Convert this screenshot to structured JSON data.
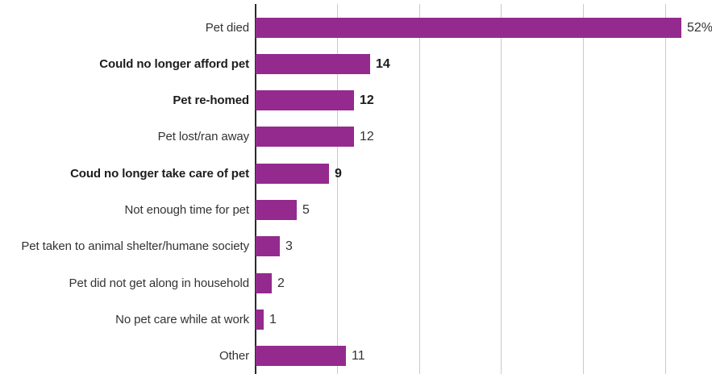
{
  "chart_data": {
    "type": "bar",
    "orientation": "horizontal",
    "title": "",
    "xlabel": "",
    "ylabel": "",
    "categories": [
      "Pet died",
      "Could no longer afford pet",
      "Pet re-homed",
      "Pet lost/ran away",
      "Coud no longer take care of pet",
      "Not enough time for pet",
      "Pet taken to animal shelter/humane society",
      "Pet did not get along in household",
      "No pet care while at work",
      "Other"
    ],
    "values": [
      52,
      14,
      12,
      12,
      9,
      5,
      3,
      2,
      1,
      11
    ],
    "value_labels": [
      "52%",
      "14",
      "12",
      "12",
      "9",
      "5",
      "3",
      "2",
      "1",
      "11"
    ],
    "bold_rows": [
      false,
      true,
      true,
      false,
      true,
      false,
      false,
      false,
      false,
      false
    ],
    "xlim": [
      0,
      55.7
    ],
    "gridline_values": [
      10,
      20,
      30,
      40,
      50
    ],
    "axis_tick_labels": [
      "0",
      "10",
      "20",
      "30",
      "40",
      "50"
    ],
    "axis_tick_values": [
      0,
      10,
      20,
      30,
      40,
      50
    ],
    "grid": true,
    "legend_position": "none",
    "colors": {
      "bar": "#942a8e",
      "label": "#333333",
      "bold_label": "#1c1c1c",
      "gridline": "#c9c9c9",
      "zero_axis": "#2b2b2b",
      "tick_remnant": "#9a9a9a",
      "background": "#ffffff"
    }
  }
}
